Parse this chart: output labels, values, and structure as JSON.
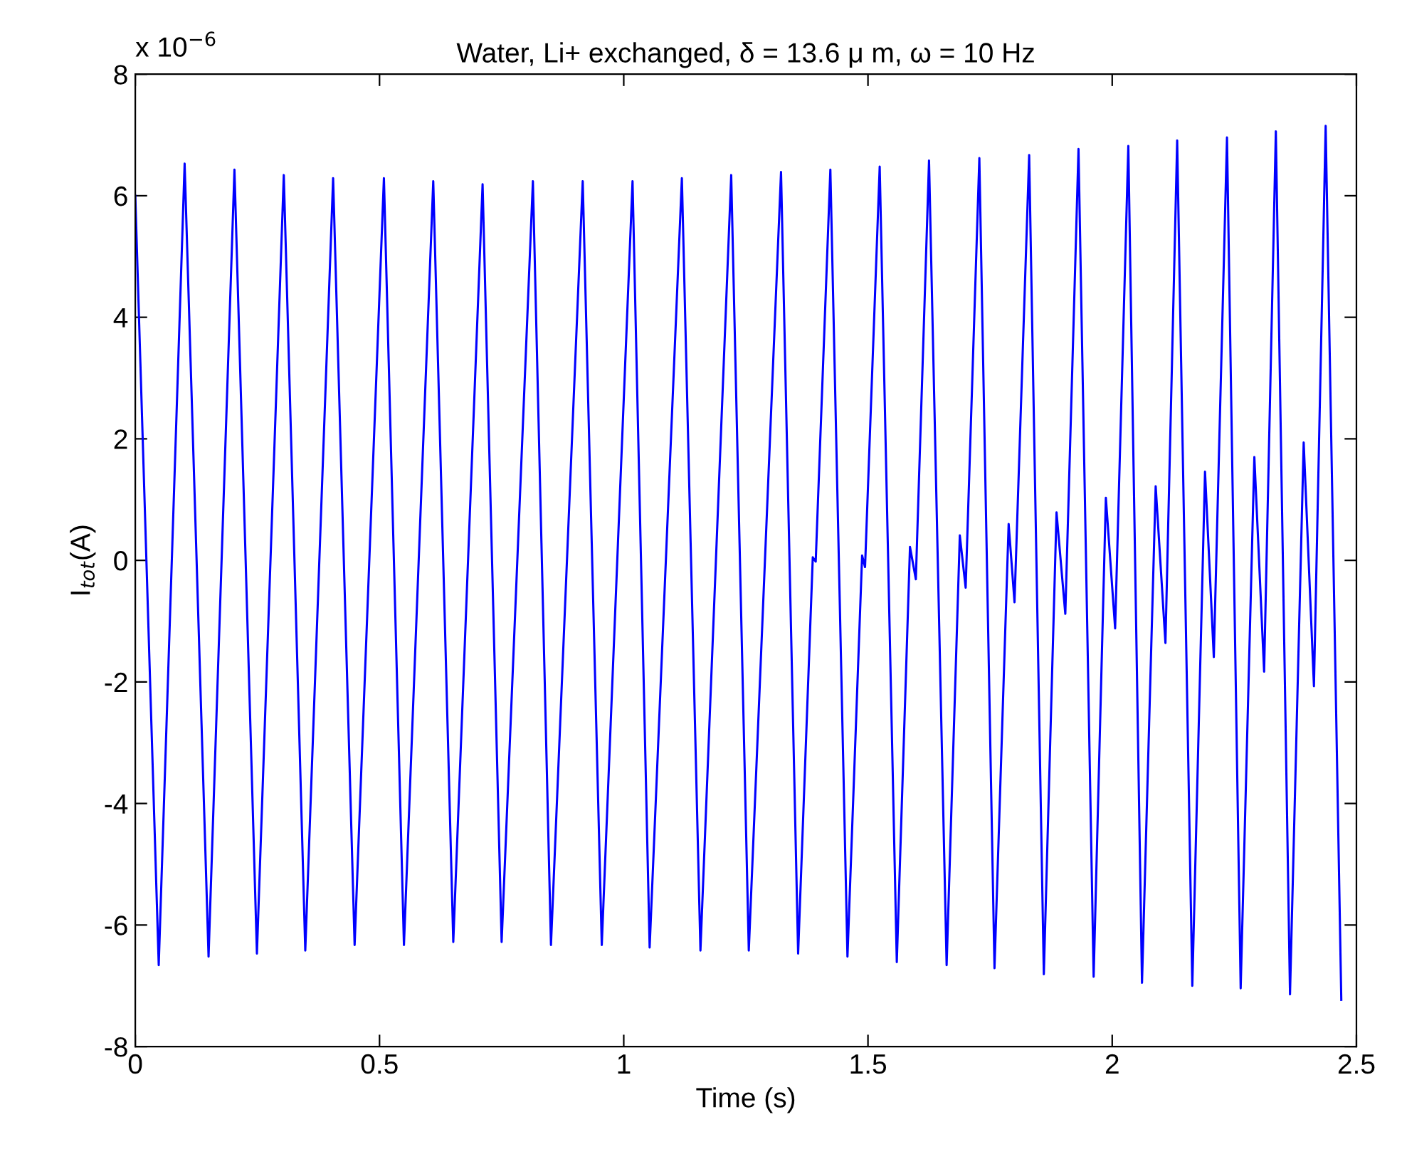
{
  "chart_data": {
    "type": "line",
    "title": "Water, Li+ exchanged, δ = 13.6 μ m, ω = 10 Hz",
    "xlabel": "Time (s)",
    "ylabel": "I$_{tot}$(A)",
    "annotations": [
      "x 10$^{−6}$"
    ],
    "xlim": [
      0,
      2.5
    ],
    "xticks": [
      0,
      0.5,
      1,
      1.5,
      2,
      2.5
    ],
    "ylim": [
      -8,
      8
    ],
    "yticks": [
      -8,
      -6,
      -4,
      -2,
      0,
      2,
      4,
      6,
      8
    ],
    "grid": false,
    "legend": false,
    "marker": "none",
    "line_style": "solid",
    "series": [
      {
        "color": "#0000ff",
        "x": [
          0,
          0.048,
          0.101,
          0.15,
          0.203,
          0.249,
          0.304,
          0.348,
          0.405,
          0.449,
          0.509,
          0.55,
          0.61,
          0.651,
          0.711,
          0.75,
          0.814,
          0.851,
          0.916,
          0.955,
          1.018,
          1.053,
          1.119,
          1.157,
          1.22,
          1.256,
          1.322,
          1.357,
          1.387,
          1.393,
          1.423,
          1.458,
          1.488,
          1.494,
          1.524,
          1.559,
          1.586,
          1.598,
          1.625,
          1.661,
          1.688,
          1.7,
          1.728,
          1.759,
          1.788,
          1.8,
          1.83,
          1.86,
          1.886,
          1.904,
          1.931,
          1.962,
          1.987,
          2.006,
          2.033,
          2.061,
          2.089,
          2.109,
          2.133,
          2.164,
          2.19,
          2.208,
          2.235,
          2.263,
          2.291,
          2.311,
          2.335,
          2.364,
          2.392,
          2.413,
          2.437,
          2.469
        ],
        "values": [
          6.0,
          -6.66,
          6.53,
          -6.52,
          6.43,
          -6.47,
          6.34,
          -6.42,
          6.29,
          -6.33,
          6.29,
          -6.33,
          6.24,
          -6.28,
          6.19,
          -6.28,
          6.24,
          -6.33,
          6.24,
          -6.33,
          6.24,
          -6.37,
          6.29,
          -6.42,
          6.34,
          -6.42,
          6.39,
          -6.47,
          0.05,
          -0.02,
          6.43,
          -6.52,
          0.08,
          -0.11,
          6.48,
          -6.61,
          0.22,
          -0.31,
          6.58,
          -6.66,
          0.41,
          -0.45,
          6.62,
          -6.71,
          0.6,
          -0.69,
          6.67,
          -6.81,
          0.79,
          -0.88,
          6.77,
          -6.85,
          1.03,
          -1.12,
          6.82,
          -6.95,
          1.22,
          -1.36,
          6.91,
          -7.0,
          1.46,
          -1.59,
          6.96,
          -7.04,
          1.7,
          -1.83,
          7.06,
          -7.14,
          1.94,
          -2.07,
          7.15,
          -7.23
        ]
      }
    ]
  }
}
